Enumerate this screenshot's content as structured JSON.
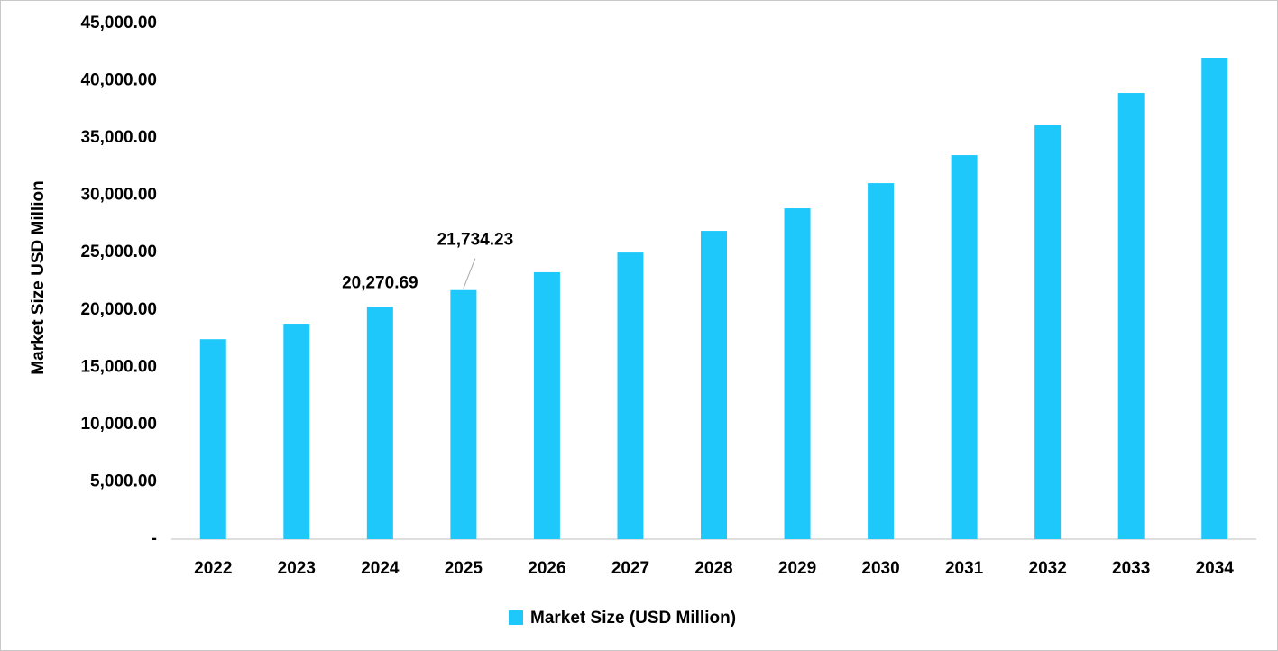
{
  "chart_data": {
    "type": "bar",
    "y_label": "Market Size USD Million",
    "categories": [
      "2022",
      "2023",
      "2024",
      "2025",
      "2026",
      "2027",
      "2028",
      "2029",
      "2030",
      "2031",
      "2032",
      "2033",
      "2034"
    ],
    "series": [
      {
        "name": "Market Size (USD Million)",
        "color": "#1fc8fa",
        "values": [
          17450,
          18800,
          20270.69,
          21734.23,
          23290,
          25010,
          26900,
          28870,
          31070,
          33510,
          36110,
          38940,
          42010
        ],
        "value_labels": [
          null,
          null,
          "20,270.69",
          "21,734.23",
          null,
          null,
          null,
          null,
          null,
          null,
          null,
          null,
          null
        ]
      }
    ],
    "ylim": [
      0,
      45000
    ],
    "yticks": [
      {
        "value": 0,
        "label": "-"
      },
      {
        "value": 5000,
        "label": "5,000.00"
      },
      {
        "value": 10000,
        "label": "10,000.00"
      },
      {
        "value": 15000,
        "label": "15,000.00"
      },
      {
        "value": 20000,
        "label": "20,000.00"
      },
      {
        "value": 25000,
        "label": "25,000.00"
      },
      {
        "value": 30000,
        "label": "30,000.00"
      },
      {
        "value": 35000,
        "label": "35,000.00"
      },
      {
        "value": 40000,
        "label": "40,000.00"
      },
      {
        "value": 45000,
        "label": "45,000.00"
      }
    ],
    "grid": false,
    "legend": "bottom"
  }
}
